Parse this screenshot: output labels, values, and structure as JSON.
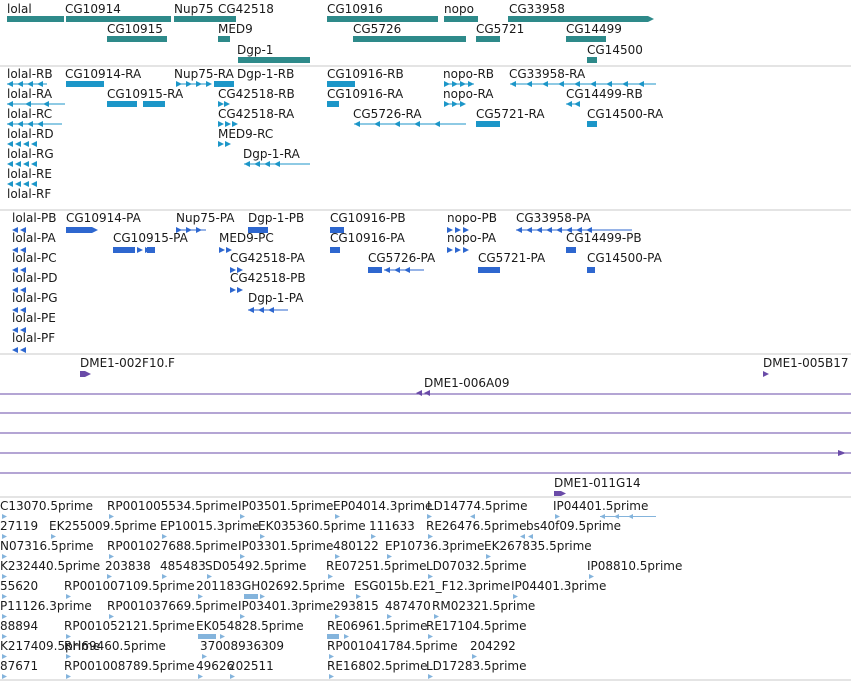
{
  "colors": {
    "gene": "#2e8a8a",
    "transcript_a": "#1c96c8",
    "transcript_b": "#2e67cf",
    "clone": "#6a4ba8",
    "est": "#84b4dc",
    "separator": "#c8c8c8"
  },
  "tracks": [
    {
      "name": "genes",
      "features": [
        {
          "label": "lolal"
        },
        {
          "label": "CG10914"
        },
        {
          "label": "Nup75"
        },
        {
          "label": "CG42518"
        },
        {
          "label": "CG10916"
        },
        {
          "label": "nopo"
        },
        {
          "label": "CG33958"
        },
        {
          "label": "CG10915"
        },
        {
          "label": "MED9"
        },
        {
          "label": "CG5726"
        },
        {
          "label": "CG5721"
        },
        {
          "label": "CG14499"
        },
        {
          "label": "Dgp-1"
        },
        {
          "label": "CG14500"
        }
      ]
    },
    {
      "name": "transcripts-r",
      "features": [
        {
          "label": "lolal-RB"
        },
        {
          "label": "CG10914-RA"
        },
        {
          "label": "Nup75-RA"
        },
        {
          "label": "Dgp-1-RB"
        },
        {
          "label": "CG10916-RB"
        },
        {
          "label": "nopo-RB"
        },
        {
          "label": "CG33958-RA"
        },
        {
          "label": "lolal-RA"
        },
        {
          "label": "CG10915-RA"
        },
        {
          "label": "CG42518-RB"
        },
        {
          "label": "CG10916-RA"
        },
        {
          "label": "nopo-RA"
        },
        {
          "label": "CG14499-RB"
        },
        {
          "label": "lolal-RC"
        },
        {
          "label": "CG42518-RA"
        },
        {
          "label": "CG5726-RA"
        },
        {
          "label": "CG5721-RA"
        },
        {
          "label": "CG14500-RA"
        },
        {
          "label": "lolal-RD"
        },
        {
          "label": "MED9-RC"
        },
        {
          "label": "lolal-RG"
        },
        {
          "label": "Dgp-1-RA"
        },
        {
          "label": "lolal-RE"
        },
        {
          "label": "lolal-RF"
        }
      ]
    },
    {
      "name": "transcripts-p",
      "features": [
        {
          "label": "lolal-PB"
        },
        {
          "label": "CG10914-PA"
        },
        {
          "label": "Nup75-PA"
        },
        {
          "label": "Dgp-1-PB"
        },
        {
          "label": "CG10916-PB"
        },
        {
          "label": "nopo-PB"
        },
        {
          "label": "CG33958-PA"
        },
        {
          "label": "lolal-PA"
        },
        {
          "label": "CG10915-PA"
        },
        {
          "label": "MED9-PC"
        },
        {
          "label": "CG10916-PA"
        },
        {
          "label": "nopo-PA"
        },
        {
          "label": "CG14499-PB"
        },
        {
          "label": "lolal-PC"
        },
        {
          "label": "CG42518-PA"
        },
        {
          "label": "CG5726-PA"
        },
        {
          "label": "CG5721-PA"
        },
        {
          "label": "CG14500-PA"
        },
        {
          "label": "lolal-PD"
        },
        {
          "label": "CG42518-PB"
        },
        {
          "label": "lolal-PG"
        },
        {
          "label": "Dgp-1-PA"
        },
        {
          "label": "lolal-PE"
        },
        {
          "label": "lolal-PF"
        }
      ]
    },
    {
      "name": "clones",
      "features": [
        {
          "label": "DME1-002F10.F"
        },
        {
          "label": "DME1-005B17"
        },
        {
          "label": "DME1-006A09"
        },
        {
          "label": "DME1-011G14"
        }
      ]
    },
    {
      "name": "ests",
      "features": [
        {
          "label": "C13070.5prime"
        },
        {
          "label": "RP001005534.5prime"
        },
        {
          "label": "IP03501.5prime"
        },
        {
          "label": "EP04014.3prime"
        },
        {
          "label": "LD14774.5prime"
        },
        {
          "label": "IP04401.5prime"
        },
        {
          "label": "27119"
        },
        {
          "label": "EK255009.5prime"
        },
        {
          "label": "EP10015.3prime"
        },
        {
          "label": "EK035360.5prime"
        },
        {
          "label": "111633"
        },
        {
          "label": "RE26476.5prime"
        },
        {
          "label": "bs40f09.5prime"
        },
        {
          "label": "N07316.5prime"
        },
        {
          "label": "RP001027688.5prime"
        },
        {
          "label": "IP03301.5prime"
        },
        {
          "label": "480122"
        },
        {
          "label": "EP10736.3prime"
        },
        {
          "label": "EK267835.5prime"
        },
        {
          "label": "K232440.5prime"
        },
        {
          "label": "203838"
        },
        {
          "label": "485483"
        },
        {
          "label": "SD05492.5prime"
        },
        {
          "label": "RE07251.5prime"
        },
        {
          "label": "LD07032.5prime"
        },
        {
          "label": "IP08810.5prime"
        },
        {
          "label": "55620"
        },
        {
          "label": "RP001007109.5prime"
        },
        {
          "label": "201183"
        },
        {
          "label": "GH02692.5prime"
        },
        {
          "label": "ESG015b.E21_F12.3prime"
        },
        {
          "label": "IP04401.3prime"
        },
        {
          "label": "P11126.3prime"
        },
        {
          "label": "RP001037669.5prime"
        },
        {
          "label": "IP03401.3prime"
        },
        {
          "label": "293815"
        },
        {
          "label": "487470"
        },
        {
          "label": "RM02321.5prime"
        },
        {
          "label": "88894"
        },
        {
          "label": "RP001052121.5prime"
        },
        {
          "label": "EK054828.5prime"
        },
        {
          "label": "RE06961.5prime"
        },
        {
          "label": "RE17104.5prime"
        },
        {
          "label": "K217409.5prime"
        },
        {
          "label": "RH69460.5prime"
        },
        {
          "label": "37008936309"
        },
        {
          "label": "RP001041784.5prime"
        },
        {
          "label": "204292"
        },
        {
          "label": "87671"
        },
        {
          "label": "RP001008789.5prime"
        },
        {
          "label": "49626"
        },
        {
          "label": "202511"
        },
        {
          "label": "RE16802.5prime"
        },
        {
          "label": "LD17283.5prime"
        }
      ]
    }
  ]
}
